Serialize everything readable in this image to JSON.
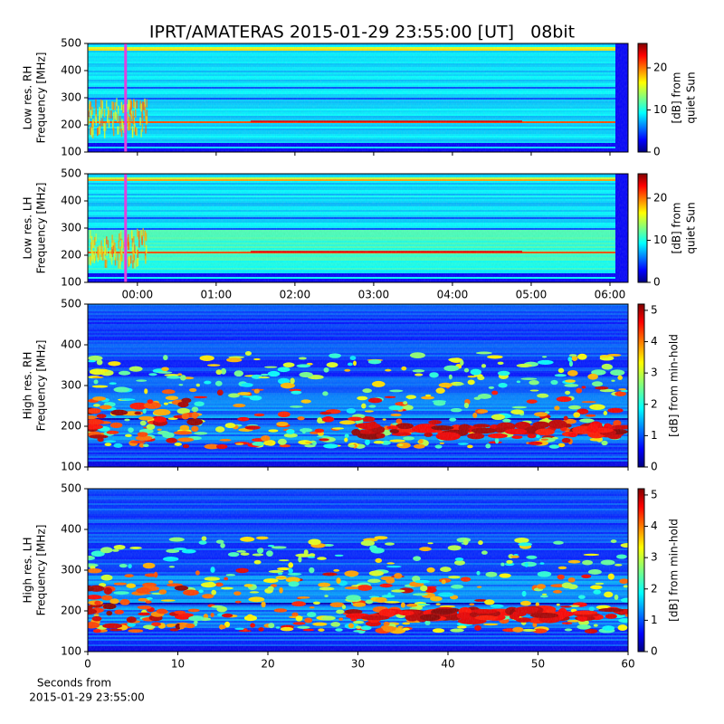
{
  "title": "IPRT/AMATERAS 2015-01-29 23:55:00 [UT]   08bit",
  "chart_data": [
    {
      "type": "heatmap",
      "ylabel": [
        "Low res. RH",
        "Frequency [MHz]"
      ],
      "ylim": [
        100,
        500
      ],
      "yticks": [
        100,
        200,
        300,
        400,
        500
      ],
      "highlight_x": -0.15,
      "highlight_color": "#e040e0",
      "colorbar": {
        "label": [
          "[dB] from",
          "quiet Sun"
        ],
        "lim": [
          0,
          25.8
        ],
        "ticks": [
          0,
          10,
          20
        ]
      }
    },
    {
      "type": "heatmap",
      "ylabel": [
        "Low res. LH",
        "Frequency [MHz]"
      ],
      "ylim": [
        100,
        500
      ],
      "yticks": [
        100,
        200,
        300,
        400,
        500
      ],
      "xlim": [
        -0.63,
        6.23
      ],
      "xticks": [
        {
          "value": 0,
          "label": "00:00"
        },
        {
          "value": 1,
          "label": "01:00"
        },
        {
          "value": 2,
          "label": "02:00"
        },
        {
          "value": 3,
          "label": "03:00"
        },
        {
          "value": 4,
          "label": "04:00"
        },
        {
          "value": 5,
          "label": "05:00"
        },
        {
          "value": 6,
          "label": "06:00"
        }
      ],
      "highlight_x": -0.15,
      "highlight_color": "#e040e0",
      "colorbar": {
        "label": [
          "[dB] from",
          "quiet Sun"
        ],
        "lim": [
          0,
          25.8
        ],
        "ticks": [
          0,
          10,
          20
        ]
      }
    },
    {
      "type": "heatmap",
      "ylabel": [
        "High res. RH",
        "Frequency [MHz]"
      ],
      "ylim": [
        100,
        500
      ],
      "yticks": [
        100,
        200,
        300,
        400,
        500
      ],
      "colorbar": {
        "label": [
          "[dB] from min-hold"
        ],
        "lim": [
          0,
          5.2
        ],
        "ticks": [
          0,
          1,
          2,
          3,
          4,
          5
        ]
      }
    },
    {
      "type": "heatmap",
      "ylabel": [
        "High res. LH",
        "Frequency [MHz]"
      ],
      "ylim": [
        100,
        500
      ],
      "yticks": [
        100,
        200,
        300,
        400,
        500
      ],
      "xlim": [
        0,
        60
      ],
      "xticks": [
        0,
        10,
        20,
        30,
        40,
        50,
        60
      ],
      "xlabel": [
        "Seconds from",
        "2015-01-29 23:55:00"
      ],
      "colorbar": {
        "label": [
          "[dB] from min-hold"
        ],
        "lim": [
          0,
          5.2
        ],
        "ticks": [
          0,
          1,
          2,
          3,
          4,
          5
        ]
      }
    }
  ]
}
